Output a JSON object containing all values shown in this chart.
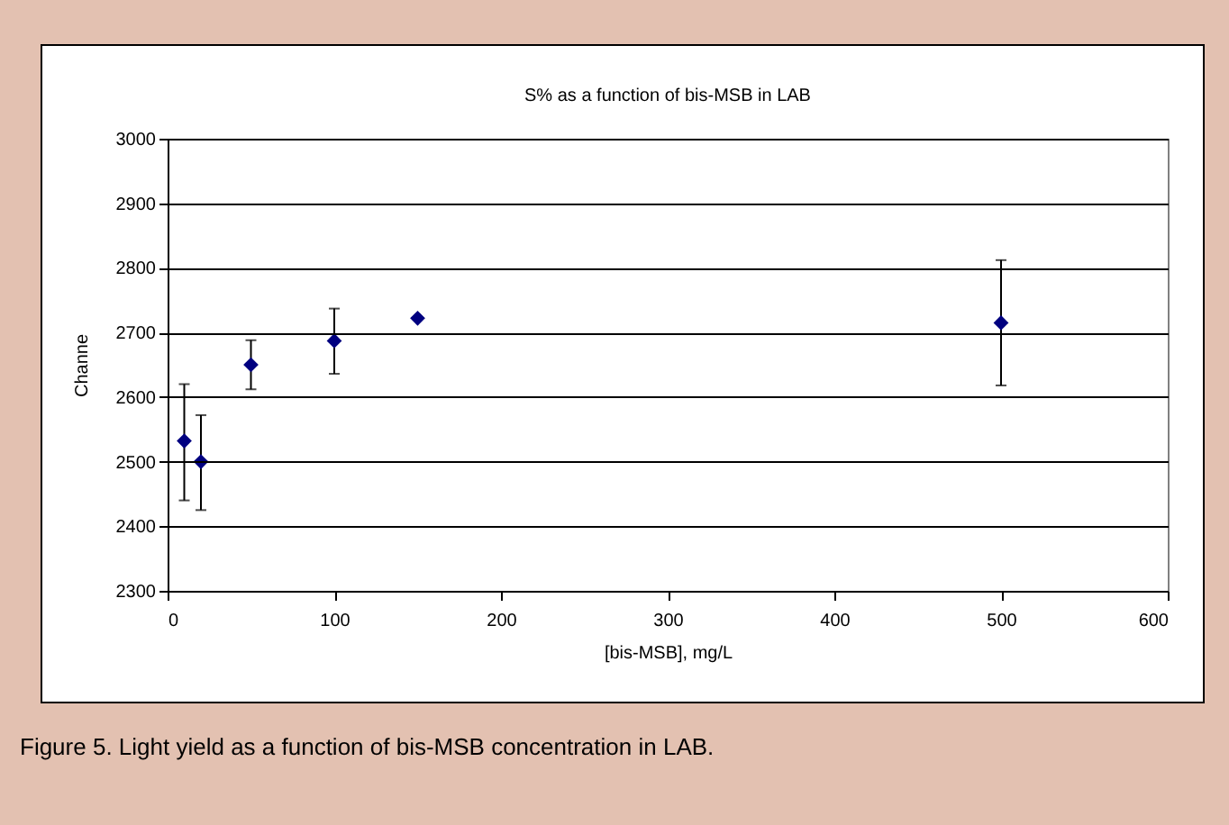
{
  "chart_data": {
    "type": "scatter",
    "title": "S% as a function of bis-MSB in LAB",
    "xlabel": "[bis-MSB], mg/L",
    "ylabel": "Channe",
    "x": [
      10,
      20,
      50,
      100,
      150,
      500
    ],
    "series": [
      {
        "color": "#000080",
        "values": [
          2532,
          2500,
          2650,
          2687,
          2722,
          2715
        ],
        "errors": [
          [
            2440,
            2620
          ],
          [
            2425,
            2572
          ],
          [
            2612,
            2688
          ],
          [
            2636,
            2737
          ],
          null,
          [
            2618,
            2812
          ]
        ]
      }
    ],
    "xlim": [
      0,
      600
    ],
    "xticks": [
      0,
      100,
      200,
      300,
      400,
      500,
      600
    ],
    "ylim": [
      2300,
      3000
    ],
    "yticks": [
      2300,
      2400,
      2500,
      2600,
      2700,
      2800,
      2900,
      3000
    ],
    "grid": "y",
    "marker": "diamond",
    "annotations": [
      "Figure 5.  Light yield as a function of bis-MSB concentration in LAB."
    ]
  }
}
